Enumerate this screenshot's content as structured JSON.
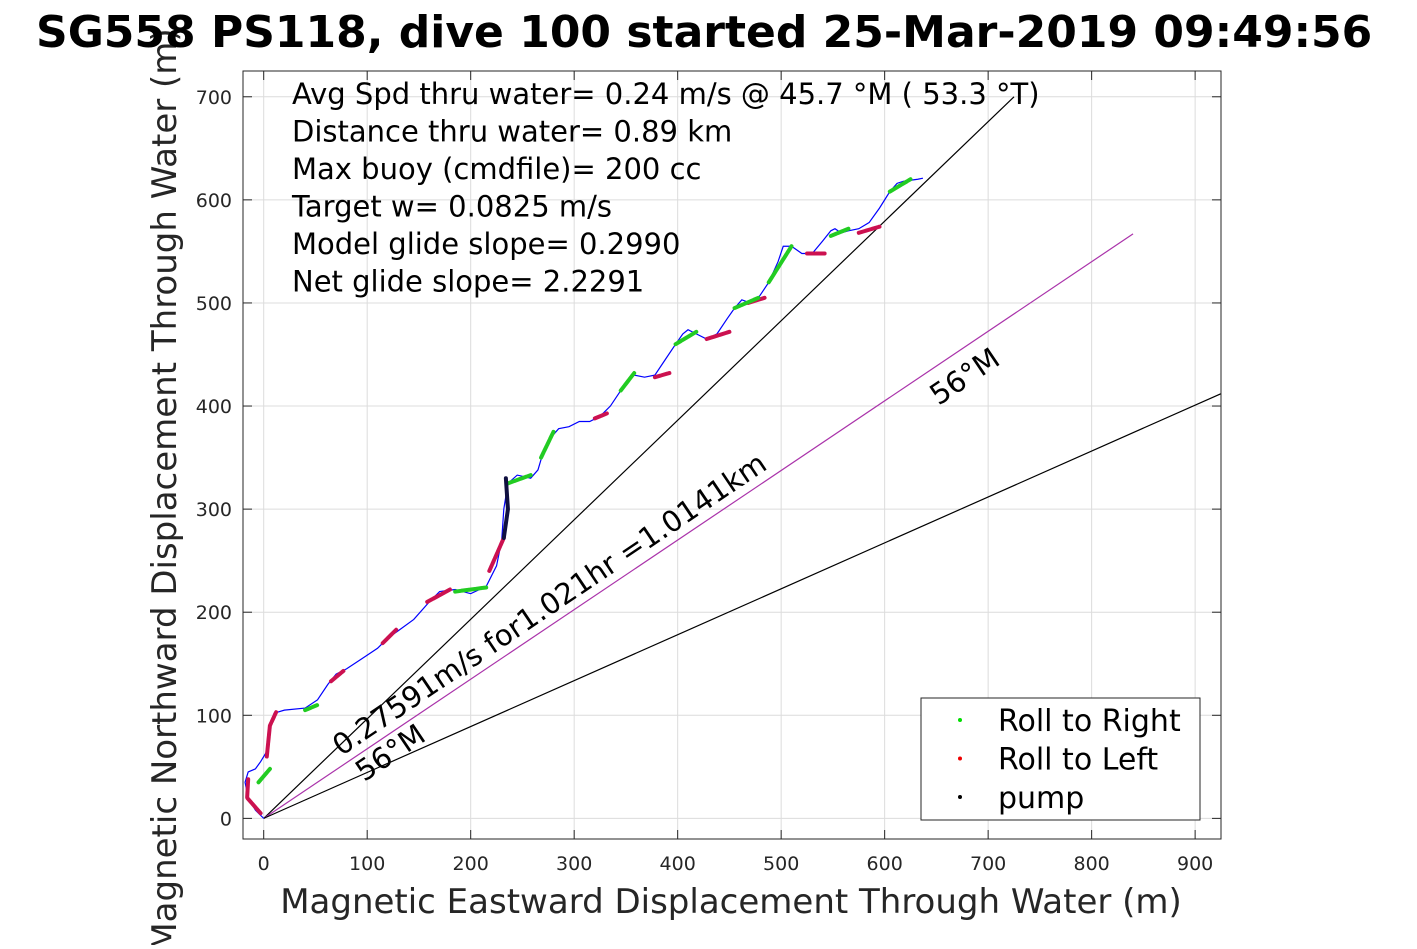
{
  "chart_data": {
    "type": "scatter",
    "title": "SG558 PS118, dive 100 started 25-Mar-2019 09:49:56",
    "xlabel": "Magnetic Eastward Displacement Through Water (m)",
    "ylabel": "Magnetic Northward Displacement Through Water (m)",
    "xlim": [
      -20,
      925
    ],
    "ylim": [
      -20,
      725
    ],
    "xticks": [
      0,
      100,
      200,
      300,
      400,
      500,
      600,
      700,
      800,
      900
    ],
    "yticks": [
      0,
      100,
      200,
      300,
      400,
      500,
      600,
      700
    ],
    "grid": true,
    "legend_position": "bottom-right",
    "info_text": [
      "Avg Spd thru water=  0.24 m/s @  45.7 °M ( 53.3 °T)",
      "Distance thru water=  0.89 km",
      "Max buoy (cmdfile)= 200 cc",
      "Target w= 0.0825 m/s",
      "Model glide slope= 0.2990",
      "Net glide slope= 2.2291"
    ],
    "legend": [
      {
        "label": "Roll to Right",
        "color": "#00dd00"
      },
      {
        "label": "Roll to Left",
        "color": "#ee0000"
      },
      {
        "label": "pump",
        "color": "#000000"
      }
    ],
    "reference_lines": [
      {
        "name": "heading-line",
        "color": "#000000",
        "from": [
          0,
          0
        ],
        "to": [
          725,
          700
        ]
      },
      {
        "name": "current-line",
        "color": "#aa33aa",
        "from": [
          0,
          0
        ],
        "to": [
          840,
          567
        ]
      },
      {
        "name": "lower-line",
        "color": "#000000",
        "from": [
          0,
          0
        ],
        "to": [
          925,
          412
        ]
      }
    ],
    "annotations": [
      {
        "text": "0.27591m/s for1.021hr =1.0141km",
        "x": 75,
        "y": 60,
        "angle_deg": 34
      },
      {
        "text": "56°M",
        "x": 97,
        "y": 35,
        "angle_deg": 34
      },
      {
        "text": "56°M",
        "x": 652,
        "y": 400,
        "angle_deg": 34
      }
    ],
    "track": {
      "color": "#0000ff",
      "x": [
        0,
        -8,
        -15,
        -18,
        -15,
        -8,
        -3,
        3,
        5,
        6,
        10,
        20,
        40,
        52,
        62,
        70,
        80,
        95,
        110,
        120,
        130,
        145,
        160,
        170,
        185,
        200,
        215,
        225,
        230,
        232,
        236,
        245,
        258,
        265,
        270,
        278,
        285,
        295,
        305,
        315,
        325,
        335,
        345,
        352,
        358,
        368,
        378,
        388,
        398,
        405,
        410,
        418,
        428,
        438,
        448,
        455,
        462,
        470,
        478,
        488,
        497,
        502,
        510,
        520,
        530,
        540,
        548,
        552,
        558,
        565,
        575,
        585,
        595,
        605,
        612,
        618,
        625,
        632,
        637
      ],
      "y": [
        0,
        8,
        20,
        35,
        45,
        48,
        55,
        65,
        80,
        90,
        102,
        105,
        107,
        115,
        130,
        140,
        145,
        155,
        165,
        175,
        182,
        193,
        210,
        220,
        222,
        218,
        225,
        245,
        270,
        300,
        325,
        333,
        330,
        338,
        355,
        370,
        378,
        380,
        385,
        385,
        390,
        400,
        415,
        425,
        430,
        428,
        430,
        445,
        460,
        470,
        474,
        470,
        465,
        470,
        485,
        495,
        503,
        500,
        505,
        520,
        540,
        555,
        555,
        548,
        548,
        560,
        570,
        572,
        568,
        570,
        572,
        578,
        592,
        608,
        616,
        618,
        619,
        620,
        621
      ]
    },
    "roll_right_segments": [
      [
        [
          -5,
          35
        ],
        [
          6,
          48
        ]
      ],
      [
        [
          40,
          105
        ],
        [
          52,
          110
        ]
      ],
      [
        [
          185,
          220
        ],
        [
          215,
          224
        ]
      ],
      [
        [
          236,
          325
        ],
        [
          258,
          333
        ]
      ],
      [
        [
          268,
          350
        ],
        [
          280,
          375
        ]
      ],
      [
        [
          345,
          415
        ],
        [
          358,
          432
        ]
      ],
      [
        [
          398,
          460
        ],
        [
          418,
          472
        ]
      ],
      [
        [
          455,
          495
        ],
        [
          478,
          505
        ]
      ],
      [
        [
          488,
          520
        ],
        [
          510,
          555
        ]
      ],
      [
        [
          548,
          565
        ],
        [
          565,
          572
        ]
      ],
      [
        [
          605,
          608
        ],
        [
          625,
          620
        ]
      ]
    ],
    "roll_left_segments": [
      [
        [
          -3,
          5
        ],
        [
          -16,
          20
        ],
        [
          -15,
          38
        ]
      ],
      [
        [
          3,
          60
        ],
        [
          6,
          90
        ],
        [
          12,
          103
        ]
      ],
      [
        [
          65,
          133
        ],
        [
          77,
          143
        ]
      ],
      [
        [
          115,
          170
        ],
        [
          128,
          183
        ]
      ],
      [
        [
          158,
          210
        ],
        [
          180,
          222
        ]
      ],
      [
        [
          218,
          240
        ],
        [
          232,
          272
        ]
      ],
      [
        [
          320,
          388
        ],
        [
          332,
          393
        ]
      ],
      [
        [
          378,
          428
        ],
        [
          392,
          432
        ]
      ],
      [
        [
          428,
          465
        ],
        [
          450,
          472
        ]
      ],
      [
        [
          468,
          500
        ],
        [
          484,
          505
        ]
      ],
      [
        [
          525,
          548
        ],
        [
          542,
          548
        ]
      ],
      [
        [
          575,
          568
        ],
        [
          595,
          574
        ]
      ]
    ],
    "pump_segment": [
      [
        232,
        272
      ],
      [
        236,
        300
      ],
      [
        234,
        330
      ]
    ]
  }
}
